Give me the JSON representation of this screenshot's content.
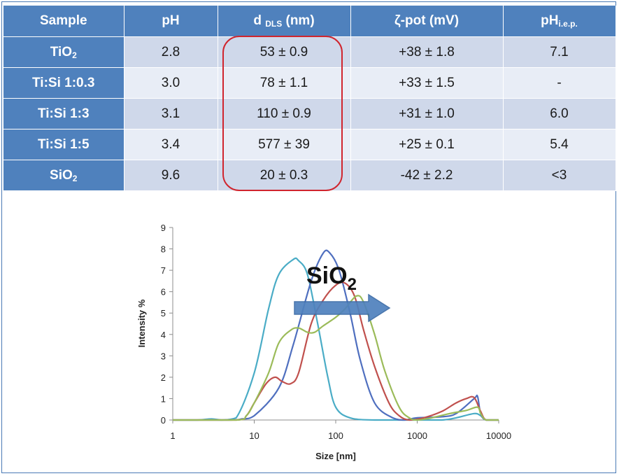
{
  "table": {
    "headers": [
      {
        "main": "Sample",
        "sub": ""
      },
      {
        "main": "pH",
        "sub": ""
      },
      {
        "main": "d ",
        "sub": "DLS",
        "tail": " (nm)"
      },
      {
        "main": "ζ-pot (mV)",
        "sub": ""
      },
      {
        "main": "pH",
        "sub": "i.e.p."
      }
    ],
    "rows": [
      {
        "sample": "TiO",
        "sample_sub": "2",
        "ph": "2.8",
        "d": "53 ± 0.9",
        "zeta": "+38 ± 1.8",
        "iep": "7.1"
      },
      {
        "sample": "Ti:Si 1:0.3",
        "sample_sub": "",
        "ph": "3.0",
        "d": "78 ± 1.1",
        "zeta": "+33 ± 1.5",
        "iep": "-"
      },
      {
        "sample": "Ti:Si 1:3",
        "sample_sub": "",
        "ph": "3.1",
        "d": "110 ± 0.9",
        "zeta": "+31 ± 1.0",
        "iep": "6.0"
      },
      {
        "sample": "Ti:Si 1:5",
        "sample_sub": "",
        "ph": "3.4",
        "d": "577 ± 39",
        "zeta": "+25 ± 0.1",
        "iep": "5.4"
      },
      {
        "sample": "SiO",
        "sample_sub": "2",
        "ph": "9.6",
        "d": "20 ± 0.3",
        "zeta": "-42 ± 2.2",
        "iep": "<3"
      }
    ]
  },
  "colors": {
    "header": "#4f81bd",
    "highlight": "#d0252e",
    "arrow": "#4f81bd"
  },
  "chart_data": {
    "type": "line",
    "xscale": "log",
    "xlim": [
      1,
      10000
    ],
    "ylim": [
      0,
      9
    ],
    "xticks": [
      "1",
      "10",
      "100",
      "1000",
      "10000"
    ],
    "yticks": [
      "0",
      "1",
      "2",
      "3",
      "4",
      "5",
      "6",
      "7",
      "8",
      "9"
    ],
    "xlabel": "Size [nm]",
    "ylabel": "Intensity %",
    "annotation": {
      "text": "SiO",
      "sub": "2"
    },
    "series": [
      {
        "color": "#4aacc6",
        "points": [
          [
            1,
            0
          ],
          [
            2,
            0
          ],
          [
            3,
            0.05
          ],
          [
            4,
            0
          ],
          [
            6,
            0.1
          ],
          [
            10,
            2.2
          ],
          [
            15,
            5.2
          ],
          [
            20,
            6.8
          ],
          [
            30,
            7.5
          ],
          [
            35,
            7.45
          ],
          [
            45,
            6.8
          ],
          [
            60,
            4.5
          ],
          [
            80,
            2.0
          ],
          [
            100,
            0.6
          ],
          [
            150,
            0.1
          ],
          [
            300,
            0
          ],
          [
            1000,
            0
          ],
          [
            2000,
            0
          ],
          [
            3000,
            0.1
          ],
          [
            5000,
            0.3
          ],
          [
            6000,
            0.2
          ],
          [
            7000,
            0
          ],
          [
            10000,
            0
          ]
        ]
      },
      {
        "color": "#4f6fbf",
        "points": [
          [
            1,
            0
          ],
          [
            5,
            0
          ],
          [
            7,
            0.05
          ],
          [
            10,
            0.2
          ],
          [
            20,
            1.5
          ],
          [
            30,
            3.5
          ],
          [
            50,
            6.5
          ],
          [
            70,
            7.8
          ],
          [
            85,
            7.8
          ],
          [
            110,
            7.0
          ],
          [
            150,
            5.0
          ],
          [
            200,
            2.8
          ],
          [
            300,
            0.8
          ],
          [
            500,
            0.1
          ],
          [
            700,
            0
          ],
          [
            1000,
            0.1
          ],
          [
            2000,
            0.15
          ],
          [
            3000,
            0.3
          ],
          [
            5000,
            1.0
          ],
          [
            5500,
            1.1
          ],
          [
            6000,
            0.3
          ],
          [
            7000,
            0
          ],
          [
            10000,
            0
          ]
        ]
      },
      {
        "color": "#c0504d",
        "points": [
          [
            1,
            0
          ],
          [
            6,
            0
          ],
          [
            8,
            0.2
          ],
          [
            10,
            0.8
          ],
          [
            14,
            1.7
          ],
          [
            18,
            2.0
          ],
          [
            22,
            1.8
          ],
          [
            28,
            1.7
          ],
          [
            35,
            2.2
          ],
          [
            50,
            4.5
          ],
          [
            70,
            5.6
          ],
          [
            100,
            6.3
          ],
          [
            130,
            6.4
          ],
          [
            170,
            5.8
          ],
          [
            220,
            4.2
          ],
          [
            300,
            2.5
          ],
          [
            450,
            0.8
          ],
          [
            600,
            0.2
          ],
          [
            800,
            0
          ],
          [
            1200,
            0.1
          ],
          [
            2000,
            0.4
          ],
          [
            3000,
            0.8
          ],
          [
            4000,
            1.0
          ],
          [
            5000,
            1.05
          ],
          [
            6000,
            0.4
          ],
          [
            7000,
            0
          ],
          [
            10000,
            0
          ]
        ]
      },
      {
        "color": "#9bbb59",
        "points": [
          [
            1,
            0
          ],
          [
            6,
            0
          ],
          [
            8,
            0.2
          ],
          [
            10,
            0.8
          ],
          [
            15,
            2.2
          ],
          [
            20,
            3.6
          ],
          [
            28,
            4.2
          ],
          [
            35,
            4.3
          ],
          [
            45,
            4.1
          ],
          [
            55,
            4.1
          ],
          [
            70,
            4.4
          ],
          [
            100,
            4.8
          ],
          [
            130,
            5.2
          ],
          [
            180,
            5.8
          ],
          [
            220,
            5.5
          ],
          [
            300,
            4.0
          ],
          [
            400,
            2.3
          ],
          [
            600,
            0.6
          ],
          [
            800,
            0.1
          ],
          [
            1000,
            0
          ],
          [
            1500,
            0.1
          ],
          [
            2500,
            0.3
          ],
          [
            4000,
            0.45
          ],
          [
            5500,
            0.6
          ],
          [
            6000,
            0.3
          ],
          [
            7000,
            0
          ],
          [
            10000,
            0
          ]
        ]
      }
    ]
  }
}
